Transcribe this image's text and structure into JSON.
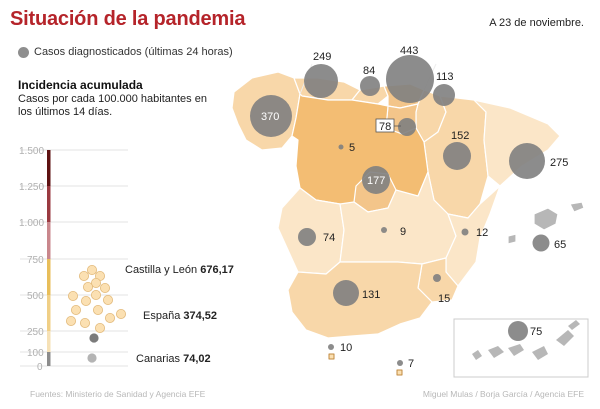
{
  "title": "Situación de la pandemia",
  "date": "A 23 de noviembre.",
  "legend_label": "Casos diagnosticados (últimas 24 horas)",
  "incidence_title": "Incidencia acumulada",
  "incidence_subtitle": "Casos por cada 100.000 habitantes en los últimos 14 días.",
  "scale_ticks": [
    "1.500",
    "1.250",
    "1.000",
    "750",
    "500",
    "250",
    "100",
    "0"
  ],
  "incidence_highlights": [
    {
      "region": "Castilla y León",
      "value": "676,17"
    },
    {
      "region": "España",
      "value": "374,52"
    },
    {
      "region": "Canarias",
      "value": "74,02"
    }
  ],
  "daily_cases": [
    {
      "label": "249"
    },
    {
      "label": "84"
    },
    {
      "label": "443"
    },
    {
      "label": "113"
    },
    {
      "label": "370"
    },
    {
      "label": "78"
    },
    {
      "label": "152"
    },
    {
      "label": "275"
    },
    {
      "label": "5"
    },
    {
      "label": "177"
    },
    {
      "label": "74"
    },
    {
      "label": "9"
    },
    {
      "label": "12"
    },
    {
      "label": "65"
    },
    {
      "label": "131"
    },
    {
      "label": "15"
    },
    {
      "label": "75"
    },
    {
      "label": "10"
    },
    {
      "label": "7"
    }
  ],
  "source": "Fuentes: Ministerio de Sanidad y Agencia EFE",
  "credits": "Miguel Mulas / Borja García / Agencia EFE",
  "colors": {
    "title": "#b5242a",
    "bubble": "#8e8e8e",
    "region_light": "#fbe6c8",
    "region_mid": "#f8d7a9",
    "region_high": "#f3bd73",
    "scale_top": "#5e1212"
  }
}
